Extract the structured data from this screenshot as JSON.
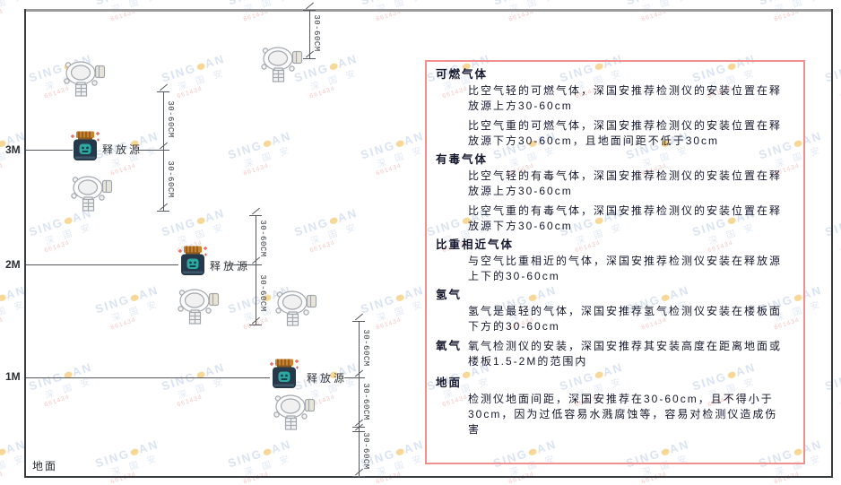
{
  "colors": {
    "panel_border": "#f29090",
    "source_cap": "#c8832f",
    "source_body": "#26394a",
    "source_emblem": "#2fa8a2",
    "sparkle": "#e05a4e",
    "detector_stroke": "#a3a8ad",
    "watermark_blue": "#b5c9e4",
    "watermark_orange": "#f2b233",
    "watermark_red": "#e89090"
  },
  "watermark": {
    "brand_prefix": "SING",
    "brand_suffix": "AN",
    "cn": "深 国 安",
    "code": "661434"
  },
  "diagram": {
    "height_labels": [
      "3M",
      "2M",
      "1M"
    ],
    "ground_label": "地面",
    "release_source_label": "释放源",
    "dim_label": "30-60CM"
  },
  "panel": {
    "sections": [
      {
        "heading": "可燃气体",
        "paragraphs": [
          "比空气轻的可燃气体，深国安推荐检测仪的安装位置在释放源上方30-60cm",
          "比空气重的可燃气体，深国安推荐检测仪的安装位置在释放源下方30-60cm，且地面间距不低于30cm"
        ]
      },
      {
        "heading": "有毒气体",
        "paragraphs": [
          "比空气轻的有毒气体，深国安推荐检测仪的安装位置在释放源上方30-60cm",
          "比空气重的有毒气体，深国安推荐检测仪的安装位置在释放源下方30-60cm"
        ]
      },
      {
        "heading": "比重相近气体",
        "paragraphs": [
          "与空气比重相近的气体，深国安推荐检测仪安装在释放源上下的30-60cm"
        ]
      },
      {
        "heading": "氢气",
        "paragraphs": [
          "氢气是最轻的气体，深国安推荐氢气检测仪安装在楼板面下方的30-60cm"
        ]
      },
      {
        "heading": "氧气",
        "paragraphs": [
          "氧气检测仪的安装，深国安推荐其安装高度在距离地面或楼板1.5-2M的范围内"
        ]
      },
      {
        "heading": "地面",
        "paragraphs": [
          "检测仪地面间距，深国安推荐在30-60cm，且不得小于30cm，因为过低容易水溅腐蚀等，容易对检测仪造成伤害"
        ]
      }
    ]
  }
}
